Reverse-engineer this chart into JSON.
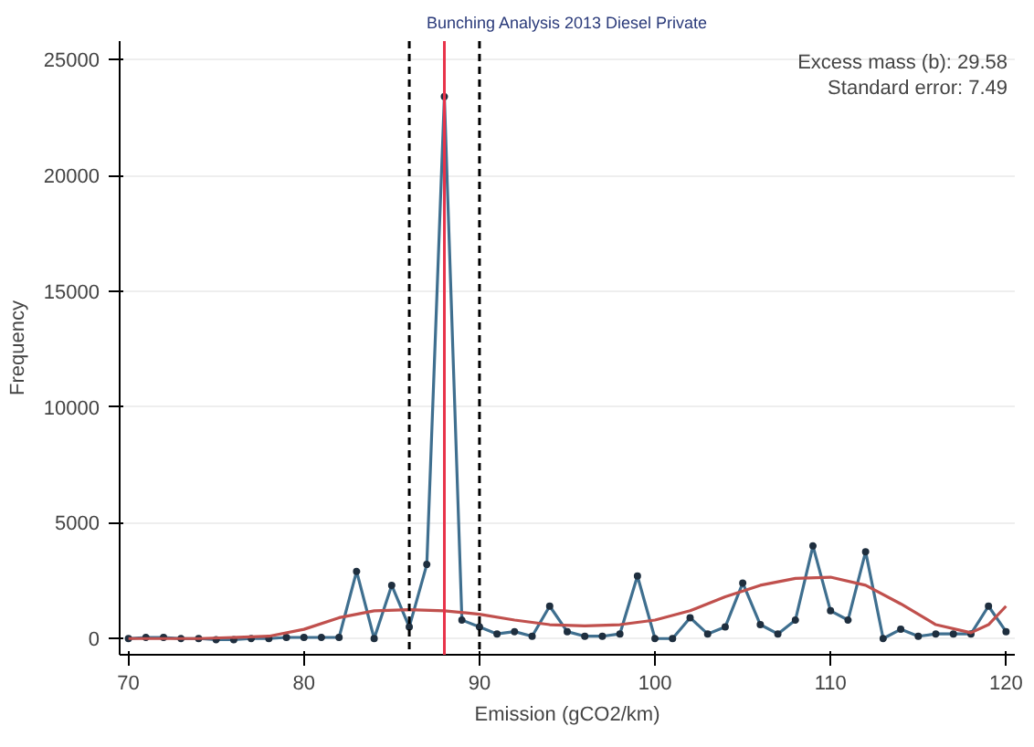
{
  "chart_data": {
    "type": "line",
    "title": "Bunching Analysis 2013 Diesel Private",
    "xlabel": "Emission (gCO2/km)",
    "ylabel": "Frequency",
    "annotations": [
      "Excess mass (b): 29.58",
      "Standard error: 7.49"
    ],
    "xlim": [
      69.5,
      120.5
    ],
    "xticks": [
      70,
      80,
      90,
      100,
      110,
      120
    ],
    "ylim": [
      -700,
      25800
    ],
    "yticks": [
      0,
      5000,
      10000,
      15000,
      20000,
      25000
    ],
    "grid": "y",
    "series": [
      {
        "marker": "circle",
        "color": "#3f6f8f",
        "x": [
          70,
          71,
          72,
          73,
          74,
          75,
          76,
          77,
          78,
          79,
          80,
          81,
          82,
          83,
          84,
          85,
          86,
          87,
          88,
          89,
          90,
          91,
          92,
          93,
          94,
          95,
          96,
          97,
          98,
          99,
          100,
          101,
          102,
          103,
          104,
          105,
          106,
          107,
          108,
          109,
          110,
          111,
          112,
          113,
          114,
          115,
          116,
          117,
          118,
          119,
          120
        ],
        "values": [
          0,
          50,
          50,
          0,
          0,
          -50,
          -50,
          0,
          0,
          50,
          50,
          50,
          50,
          2900,
          0,
          2300,
          500,
          3200,
          23400,
          800,
          500,
          200,
          300,
          100,
          1400,
          300,
          100,
          100,
          200,
          2700,
          0,
          0,
          900,
          200,
          500,
          2400,
          600,
          200,
          800,
          4000,
          1200,
          800,
          3750,
          0,
          400,
          100,
          200,
          200,
          200,
          1400,
          300
        ]
      },
      {
        "marker": "none",
        "color": "#c0504d",
        "x": [
          70,
          74,
          78,
          80,
          82,
          84,
          86,
          88,
          90,
          92,
          94,
          96,
          98,
          100,
          102,
          104,
          106,
          108,
          110,
          112,
          114,
          116,
          118,
          119,
          120
        ],
        "values": [
          0,
          0,
          100,
          400,
          900,
          1200,
          1250,
          1200,
          1050,
          800,
          600,
          550,
          600,
          800,
          1200,
          1800,
          2300,
          2600,
          2650,
          2300,
          1500,
          600,
          250,
          600,
          1400
        ]
      }
    ],
    "ref_lines": [
      {
        "axis": "x",
        "value": 86,
        "color": "#000000",
        "line_style": "dashed"
      },
      {
        "axis": "x",
        "value": 88,
        "color": "#e8334a",
        "line_style": "solid"
      },
      {
        "axis": "x",
        "value": 90,
        "color": "#000000",
        "line_style": "dashed"
      }
    ]
  }
}
